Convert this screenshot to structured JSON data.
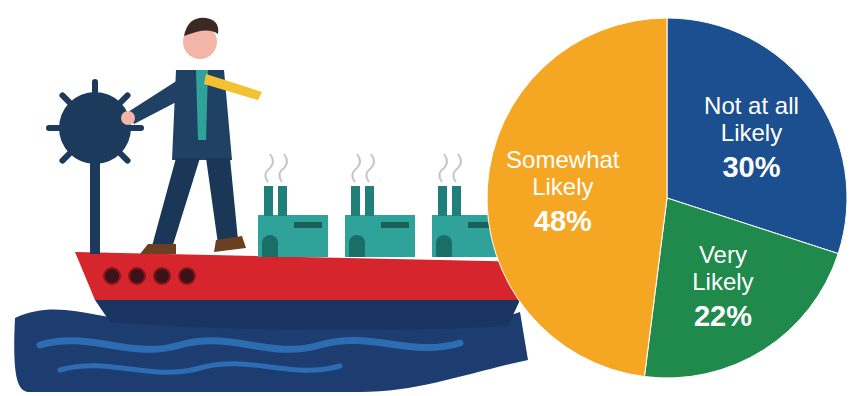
{
  "chart_data": {
    "type": "pie",
    "categories": [
      "Not at all Likely",
      "Very Likely",
      "Somewhat Likely"
    ],
    "values": [
      30,
      22,
      48
    ],
    "value_labels": [
      "30%",
      "22%",
      "48%"
    ],
    "colors": [
      "#1c4f8f",
      "#1f8a4c",
      "#f5a623"
    ],
    "data_labels": true
  }
}
